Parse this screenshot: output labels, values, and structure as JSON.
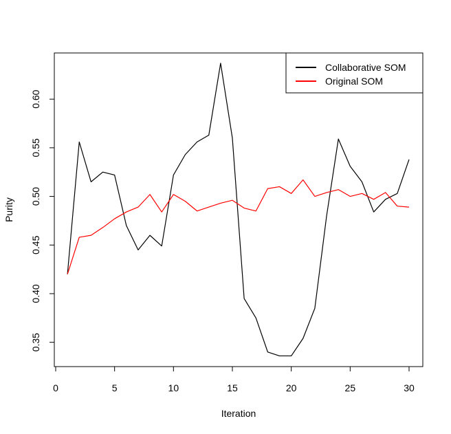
{
  "chart_data": {
    "type": "line",
    "title": "",
    "xlabel": "Iteration",
    "ylabel": "Purity",
    "xlim": [
      0,
      30
    ],
    "ylim": [
      0.325,
      0.6475
    ],
    "x_ticks": [
      0,
      5,
      10,
      15,
      20,
      25,
      30
    ],
    "y_ticks": [
      0.35,
      0.4,
      0.45,
      0.5,
      0.55,
      0.6
    ],
    "x_tick_labels": [
      "0",
      "5",
      "10",
      "15",
      "20",
      "25",
      "30"
    ],
    "y_tick_labels": [
      "0.35",
      "0.40",
      "0.45",
      "0.50",
      "0.55",
      "0.60"
    ],
    "grid": false,
    "legend_position": "top-right",
    "x": [
      1,
      2,
      3,
      4,
      5,
      6,
      7,
      8,
      9,
      10,
      11,
      12,
      13,
      14,
      15,
      16,
      17,
      18,
      19,
      20,
      21,
      22,
      23,
      24,
      25,
      26,
      27,
      28,
      29,
      30
    ],
    "series": [
      {
        "name": "Collaborative SOM",
        "color": "#000000",
        "values": [
          0.42,
          0.556,
          0.515,
          0.525,
          0.522,
          0.47,
          0.445,
          0.46,
          0.449,
          0.522,
          0.543,
          0.556,
          0.563,
          0.637,
          0.56,
          0.395,
          0.375,
          0.34,
          0.336,
          0.336,
          0.354,
          0.385,
          0.48,
          0.559,
          0.531,
          0.515,
          0.484,
          0.497,
          0.503,
          0.538
        ]
      },
      {
        "name": "Original SOM",
        "color": "#ff0000",
        "values": [
          0.42,
          0.458,
          0.46,
          0.468,
          0.477,
          0.484,
          0.489,
          0.502,
          0.484,
          0.502,
          0.495,
          0.485,
          0.489,
          0.493,
          0.496,
          0.488,
          0.485,
          0.508,
          0.51,
          0.503,
          0.517,
          0.5,
          0.504,
          0.507,
          0.5,
          0.503,
          0.497,
          0.504,
          0.49,
          0.489
        ]
      }
    ]
  }
}
